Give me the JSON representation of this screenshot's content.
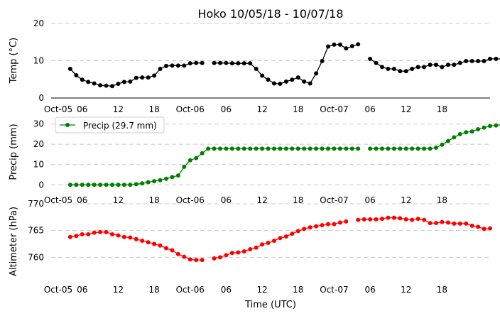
{
  "figure": {
    "title": "Hoko 10/05/18 - 10/07/18",
    "xlabel": "Time (UTC)",
    "x_tick_labels": [
      "Oct-05",
      "06",
      "12",
      "18",
      "Oct-06",
      "06",
      "12",
      "18",
      "Oct-07",
      "06",
      "12",
      "18"
    ]
  },
  "chart_data": [
    {
      "type": "line",
      "ylabel": "Temp (°C)",
      "ylim": [
        0,
        20
      ],
      "yticks": [
        0,
        10,
        20
      ],
      "grid": true,
      "color": "#000000",
      "x_start_hour": 2,
      "step_hours": 1,
      "x_hours_range": [
        0,
        72
      ],
      "values": [
        7.8,
        6.1,
        4.9,
        4.3,
        3.9,
        3.4,
        3.3,
        3.2,
        3.8,
        4.3,
        4.4,
        5.4,
        5.5,
        5.5,
        6.0,
        7.8,
        8.6,
        8.7,
        8.7,
        8.7,
        9.3,
        9.4,
        9.4,
        null,
        9.4,
        9.4,
        9.4,
        9.3,
        9.3,
        9.3,
        9.3,
        7.8,
        6.0,
        4.9,
        3.9,
        3.8,
        4.4,
        4.9,
        5.5,
        4.4,
        3.9,
        6.6,
        9.9,
        13.8,
        14.3,
        14.3,
        13.3,
        13.9,
        14.4,
        null,
        10.5,
        9.4,
        8.3,
        7.8,
        7.8,
        7.2,
        7.2,
        7.8,
        8.3,
        8.3,
        8.9,
        8.9,
        8.3,
        8.9,
        8.9,
        9.4,
        9.9,
        9.9,
        9.9,
        9.9,
        10.5,
        10.5,
        10.5
      ]
    },
    {
      "type": "line",
      "ylabel": "Precip (mm)",
      "ylim": [
        -2,
        33
      ],
      "yticks": [
        0,
        10,
        20,
        30
      ],
      "grid": true,
      "color": "#008000",
      "legend": {
        "label": "Precip (29.7 mm)",
        "placement": "upper-left"
      },
      "x_start_hour": 2,
      "step_hours": 1,
      "x_hours_range": [
        0,
        72
      ],
      "values": [
        0,
        0,
        0,
        0,
        0,
        0,
        0,
        0,
        0,
        0,
        0,
        0.3,
        0.7,
        1.3,
        1.8,
        2.3,
        3.0,
        3.8,
        4.6,
        8.9,
        12.1,
        13.2,
        15.6,
        17.8,
        17.8,
        17.8,
        17.8,
        17.8,
        17.8,
        17.8,
        17.8,
        17.8,
        17.8,
        17.8,
        17.8,
        17.8,
        17.8,
        17.8,
        17.8,
        17.8,
        17.8,
        17.8,
        17.8,
        17.8,
        17.8,
        17.8,
        17.8,
        17.8,
        17.8,
        null,
        17.8,
        17.8,
        17.8,
        17.8,
        17.8,
        17.8,
        17.8,
        17.8,
        17.8,
        17.8,
        17.8,
        18.3,
        19.8,
        21.6,
        23.4,
        25.0,
        25.9,
        26.3,
        27.4,
        28.2,
        29.0,
        29.3,
        29.7,
        29.7
      ]
    },
    {
      "type": "line",
      "ylabel": "Altimeter (hPa)",
      "ylim": [
        755,
        770
      ],
      "yticks": [
        760,
        765,
        770
      ],
      "grid": true,
      "color": "#ff0000",
      "x_start_hour": 2,
      "step_hours": 1,
      "x_hours_range": [
        0,
        72
      ],
      "values": [
        763.8,
        764.0,
        764.3,
        764.3,
        764.6,
        764.7,
        764.7,
        764.3,
        764.1,
        763.8,
        763.7,
        763.4,
        763.1,
        762.8,
        762.5,
        762.2,
        761.7,
        761.3,
        760.6,
        760.1,
        759.6,
        759.5,
        759.5,
        null,
        759.8,
        760.0,
        760.4,
        760.8,
        760.9,
        761.1,
        761.5,
        761.8,
        762.4,
        762.7,
        763.1,
        763.6,
        763.9,
        764.4,
        764.9,
        765.3,
        765.6,
        765.8,
        766.0,
        766.2,
        766.2,
        766.5,
        766.7,
        null,
        767.0,
        767.1,
        767.1,
        767.1,
        767.2,
        767.4,
        767.4,
        767.3,
        767.1,
        767.0,
        767.2,
        767.0,
        766.4,
        766.4,
        766.6,
        766.5,
        766.3,
        766.3,
        766.3,
        765.9,
        765.7,
        765.3,
        765.4
      ]
    }
  ]
}
